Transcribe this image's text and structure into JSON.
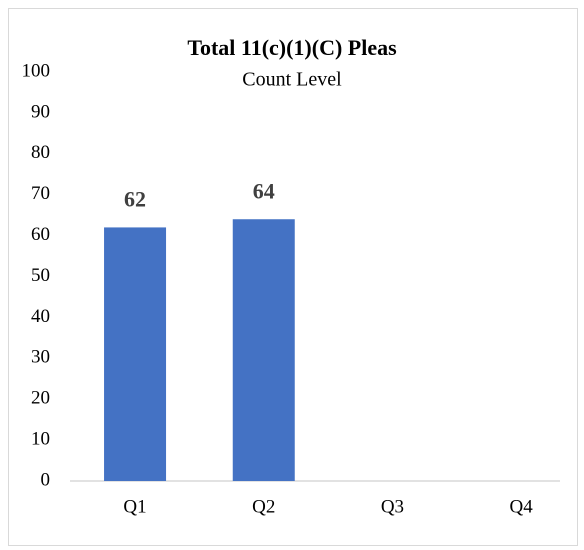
{
  "chart_data": {
    "type": "bar",
    "title": "Total 11(c)(1)(C) Pleas",
    "subtitle": "Count Level",
    "categories": [
      "Q1",
      "Q2",
      "Q3",
      "Q4"
    ],
    "values": [
      62,
      64,
      null,
      null
    ],
    "color": "#4472c4",
    "ylim": [
      0,
      100
    ],
    "yticks": [
      0,
      10,
      20,
      30,
      40,
      50,
      60,
      70,
      80,
      90,
      100
    ],
    "grid": false
  }
}
